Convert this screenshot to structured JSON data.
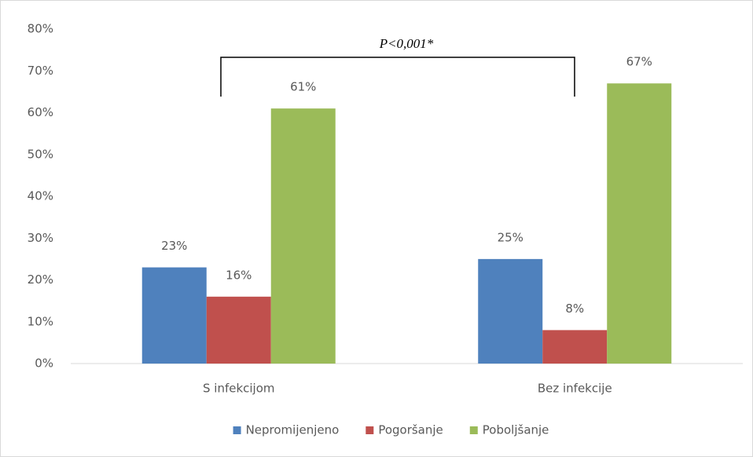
{
  "chart_data": {
    "type": "bar",
    "annotations": [
      "P<0,001*"
    ],
    "categories": [
      "S infekcijom",
      "Bez infekcije"
    ],
    "series": [
      {
        "name": "Nepromijenjeno",
        "color": "#4f81bd",
        "values": [
          23,
          25
        ],
        "value_labels": [
          "23%",
          "25%"
        ]
      },
      {
        "name": "Pogoršanje",
        "color": "#c0504d",
        "values": [
          16,
          8
        ],
        "value_labels": [
          "16%",
          "8%"
        ]
      },
      {
        "name": "Poboljšanje",
        "color": "#9bbb59",
        "values": [
          61,
          67
        ],
        "value_labels": [
          "61%",
          "67%"
        ]
      }
    ],
    "ylim": [
      0,
      80
    ],
    "yticks": [
      {
        "value": 0,
        "label": "0%"
      },
      {
        "value": 10,
        "label": "10%"
      },
      {
        "value": 20,
        "label": "20%"
      },
      {
        "value": 30,
        "label": "30%"
      },
      {
        "value": 40,
        "label": "40%"
      },
      {
        "value": 50,
        "label": "50%"
      },
      {
        "value": 60,
        "label": "60%"
      },
      {
        "value": 70,
        "label": "70%"
      },
      {
        "value": 80,
        "label": "80%"
      }
    ],
    "grid": false,
    "legend": "bottom"
  }
}
